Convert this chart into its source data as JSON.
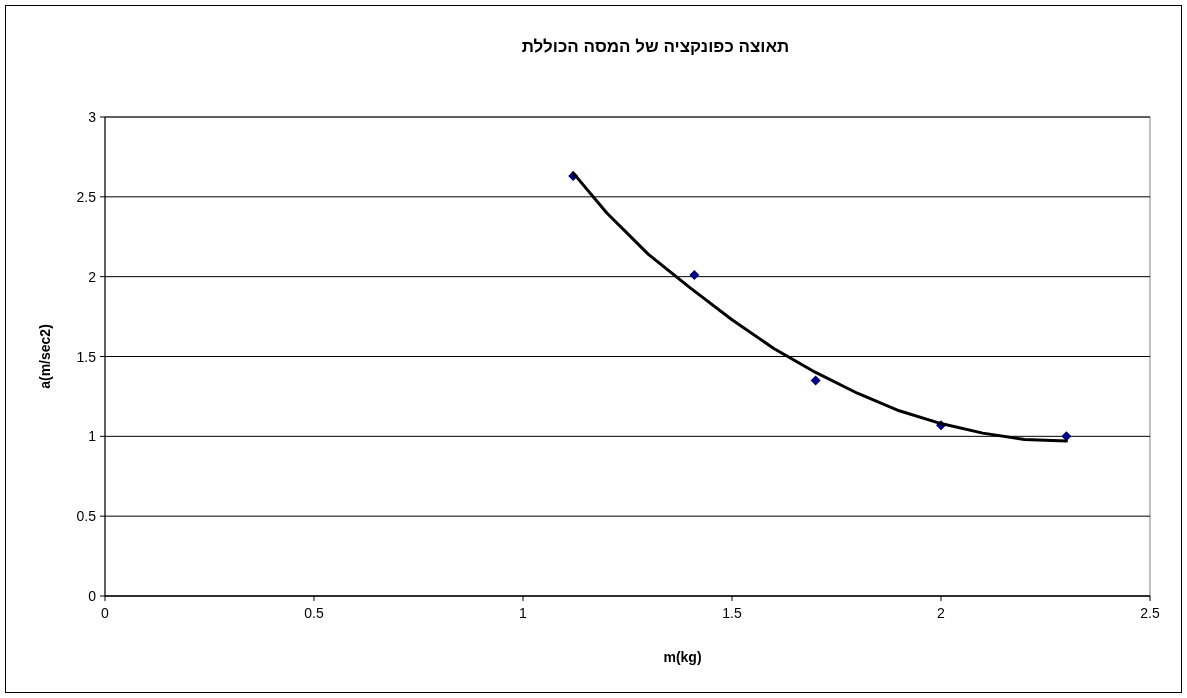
{
  "chart_data": {
    "type": "scatter",
    "title": "תאוצה כפונקציה של המסה הכוללת",
    "xlabel": "m(kg)",
    "ylabel": "a(m/sec2)",
    "xlim": [
      0,
      2.5
    ],
    "ylim": [
      0,
      3
    ],
    "xticks": [
      0,
      0.5,
      1,
      1.5,
      2,
      2.5
    ],
    "yticks": [
      0,
      0.5,
      1,
      1.5,
      2,
      2.5,
      3
    ],
    "grid": "y",
    "series": [
      {
        "type": "scatter",
        "marker": "diamond",
        "color": "#000080",
        "x": [
          1.12,
          1.41,
          1.7,
          2.0,
          2.3
        ],
        "values": [
          2.63,
          2.01,
          1.35,
          1.07,
          1.0
        ]
      },
      {
        "type": "line",
        "marker": "none",
        "color": "#000000",
        "x": [
          1.12,
          1.2,
          1.3,
          1.4,
          1.5,
          1.6,
          1.7,
          1.8,
          1.9,
          2.0,
          2.1,
          2.2,
          2.3
        ],
        "values": [
          2.65,
          2.4,
          2.14,
          1.93,
          1.73,
          1.55,
          1.4,
          1.27,
          1.16,
          1.08,
          1.02,
          0.98,
          0.97
        ]
      }
    ]
  }
}
